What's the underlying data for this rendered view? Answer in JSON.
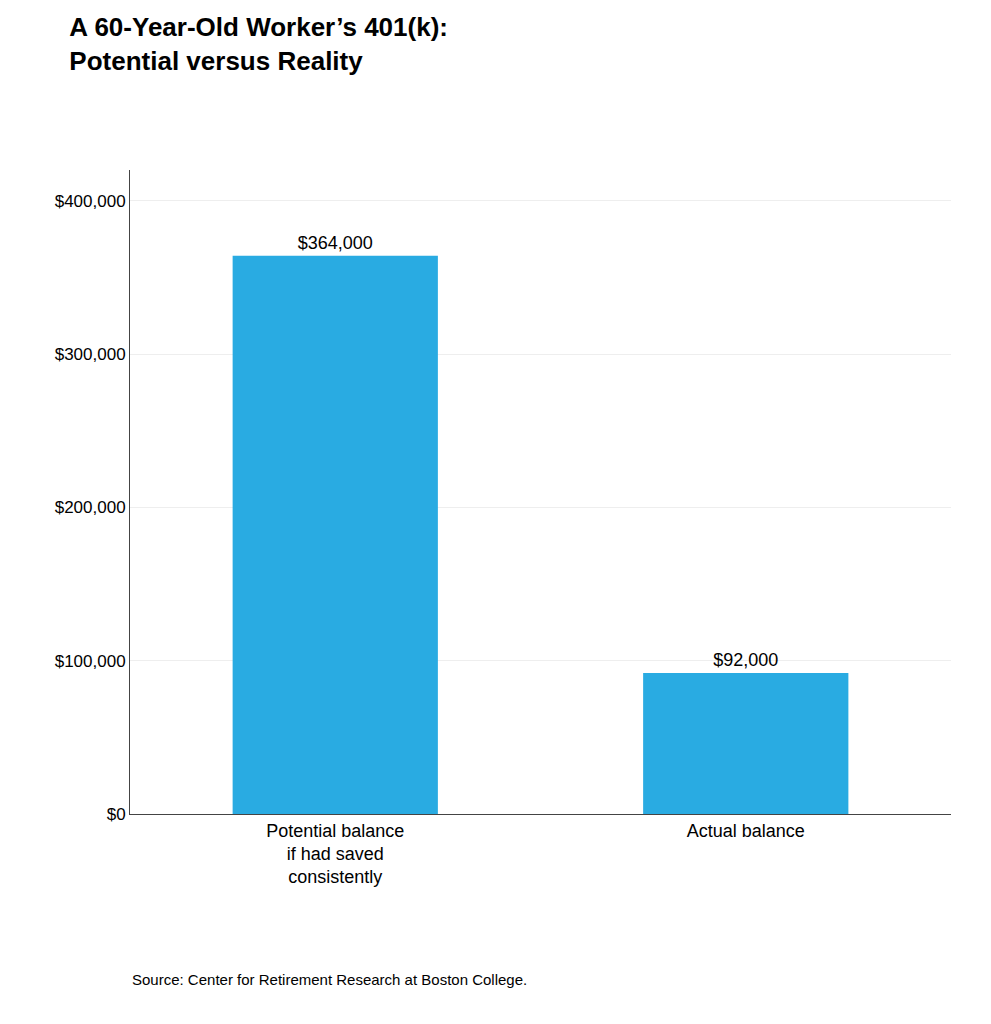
{
  "chart_data": {
    "type": "bar",
    "title": "A 60-Year-Old Worker’s 401(k):\nPotential versus Reality",
    "categories": [
      "Potential balance\nif had saved\nconsistently",
      "Actual balance"
    ],
    "values": [
      364000,
      92000
    ],
    "value_labels": [
      "$364,000",
      "$92,000"
    ],
    "data_labels": true,
    "color": "#29ABE2",
    "ylim": [
      0,
      420000
    ],
    "yticks": [
      {
        "value": 0,
        "label": "$0"
      },
      {
        "value": 100000,
        "label": "$100,000"
      },
      {
        "value": 200000,
        "label": "$200,000"
      },
      {
        "value": 300000,
        "label": "$300,000"
      },
      {
        "value": 400000,
        "label": "$400,000"
      }
    ],
    "grid": true,
    "source": "Source: Center for Retirement Research at Boston College."
  }
}
